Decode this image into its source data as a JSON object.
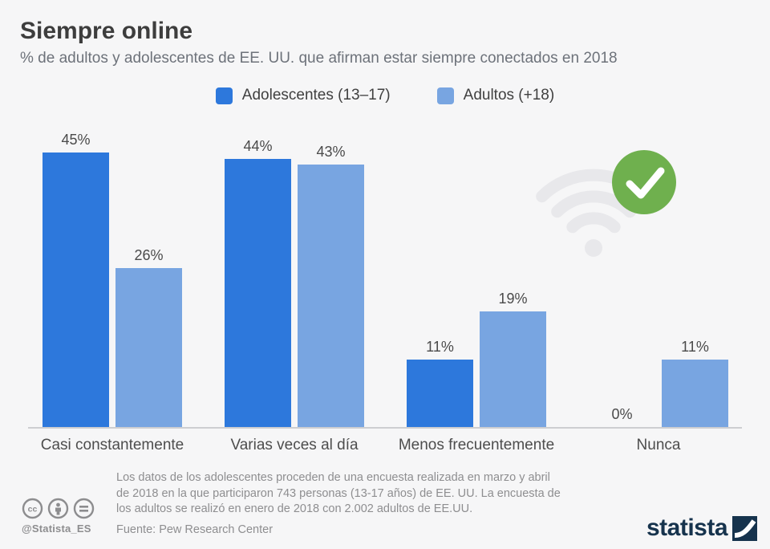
{
  "header": {
    "title": "Siempre online",
    "subtitle": "% de adultos y adolescentes de EE. UU. que afirman estar siempre conectados en 2018"
  },
  "chart_data": {
    "type": "bar",
    "title": "Siempre online",
    "subtitle": "% de adultos y adolescentes de EE. UU. que afirman estar siempre conectados en 2018",
    "categories": [
      "Casi constantemente",
      "Varias veces al día",
      "Menos frecuentemente",
      "Nunca"
    ],
    "series": [
      {
        "name": "Adolescentes (13–17)",
        "color": "#2d78dc",
        "values": [
          45,
          44,
          11,
          0
        ]
      },
      {
        "name": "Adultos (+18)",
        "color": "#78a5e1",
        "values": [
          26,
          43,
          19,
          11
        ]
      }
    ],
    "unit": "%",
    "ylim": [
      0,
      50
    ],
    "grid": false,
    "legend_position": "top",
    "value_labels": true
  },
  "decoration": {
    "wifi_icon_color": "#e8e8eb",
    "check_circle_color": "#6fb04e",
    "check_mark_color": "#ffffff"
  },
  "footer": {
    "note_lines": [
      "Los datos de los adolescentes proceden de una encuesta realizada en marzo y abril",
      "de 2018 en la que participaron 743 personas (13-17 años) de EE. UU. La encuesta de",
      "los adultos se realizó en enero de 2018 con 2.002 adultos de EE.UU."
    ],
    "source": "Fuente: Pew Research Center",
    "handle": "@Statista_ES",
    "brand": "statista"
  }
}
